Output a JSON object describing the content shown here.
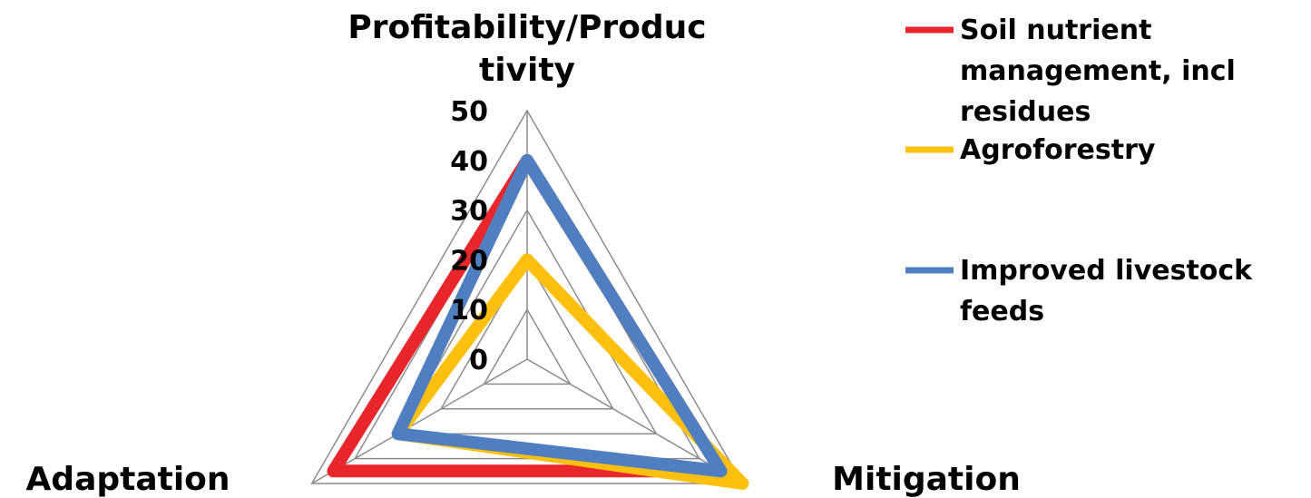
{
  "chart_data": {
    "type": "radar",
    "axes": [
      "Profitability/Productivity",
      "Mitigation",
      "Adaptation"
    ],
    "axis_label_lines": [
      [
        "Profitability/Produc",
        "tivity"
      ],
      [
        "Mitigation"
      ],
      [
        "Adaptation"
      ]
    ],
    "rlim": [
      0,
      50
    ],
    "ticks": [
      0,
      10,
      20,
      30,
      40,
      50
    ],
    "tick_labels": [
      "0",
      "10",
      "20",
      "30",
      "40",
      "50"
    ],
    "grid": true,
    "legend_position": "right",
    "series": [
      {
        "name": "Soil nutrient management, incl residues",
        "name_lines": [
          "Soil nutrient",
          "management, incl",
          "residues"
        ],
        "color": "#e8262b",
        "values": [
          40,
          45,
          45
        ]
      },
      {
        "name": "Agroforestry",
        "name_lines": [
          "Agroforestry"
        ],
        "color": "#fec00f",
        "values": [
          20,
          50,
          30
        ]
      },
      {
        "name": "Improved livestock feeds",
        "name_lines": [
          "Improved livestock",
          "feeds"
        ],
        "color": "#4f7fc1",
        "values": [
          40,
          45,
          30
        ]
      }
    ]
  }
}
